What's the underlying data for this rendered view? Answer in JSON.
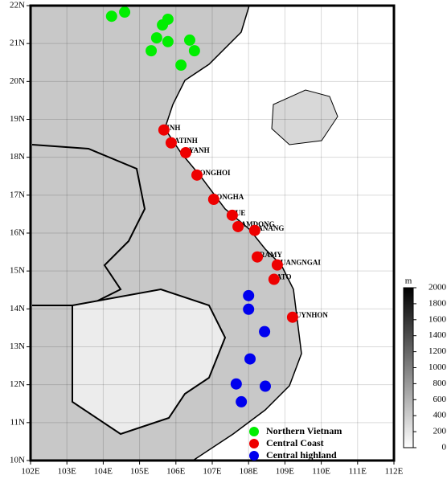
{
  "chart_data": {
    "type": "scatter",
    "xlim": [
      102,
      112
    ],
    "ylim": [
      10,
      22
    ],
    "xticks": [
      {
        "value": 102,
        "label": "102E"
      },
      {
        "value": 103,
        "label": "103E"
      },
      {
        "value": 104,
        "label": "104E"
      },
      {
        "value": 105,
        "label": "105E"
      },
      {
        "value": 106,
        "label": "106E"
      },
      {
        "value": 107,
        "label": "107E"
      },
      {
        "value": 108,
        "label": "108E"
      },
      {
        "value": 109,
        "label": "109E"
      },
      {
        "value": 110,
        "label": "110E"
      },
      {
        "value": 111,
        "label": "111E"
      },
      {
        "value": 112,
        "label": "112E"
      }
    ],
    "yticks": [
      {
        "value": 10,
        "label": "10N"
      },
      {
        "value": 11,
        "label": "11N"
      },
      {
        "value": 12,
        "label": "12N"
      },
      {
        "value": 13,
        "label": "13N"
      },
      {
        "value": 14,
        "label": "14N"
      },
      {
        "value": 15,
        "label": "15N"
      },
      {
        "value": 16,
        "label": "16N"
      },
      {
        "value": 17,
        "label": "17N"
      },
      {
        "value": 18,
        "label": "18N"
      },
      {
        "value": 19,
        "label": "19N"
      },
      {
        "value": 20,
        "label": "20N"
      },
      {
        "value": 21,
        "label": "21N"
      },
      {
        "value": 22,
        "label": "22N"
      }
    ],
    "grid": true,
    "legend": "lower right",
    "series": [
      {
        "name": "Northern Vietnam",
        "color": "#00ee00",
        "x": [
          104.23,
          104.59,
          105.63,
          105.78,
          105.47,
          105.78,
          106.38,
          106.51,
          105.32,
          106.14
        ],
        "y": [
          21.72,
          21.83,
          21.49,
          21.64,
          21.15,
          21.05,
          21.09,
          20.81,
          20.81,
          20.43
        ]
      },
      {
        "name": "Central Coast",
        "color": "#ee0000",
        "x": [
          105.67,
          105.87,
          106.27,
          106.58,
          107.04,
          107.55,
          107.71,
          108.17,
          108.24,
          108.79,
          108.7,
          109.21
        ],
        "y": [
          18.72,
          18.38,
          18.12,
          17.53,
          16.89,
          16.47,
          16.17,
          16.07,
          15.37,
          15.16,
          14.78,
          13.78
        ],
        "labels": [
          "VINH",
          "HATINH",
          "KYANH",
          "DONGHOI",
          "DONGHA",
          "HUE",
          "NAMDONG",
          "DANANG",
          "TRAMY",
          "QUANGNGAI",
          "BATO",
          "QUYNHON"
        ]
      },
      {
        "name": "Central highland",
        "color": "#0000ee",
        "x": [
          108.0,
          108.0,
          108.44,
          108.04,
          107.66,
          108.46,
          107.8
        ],
        "y": [
          14.35,
          13.99,
          13.4,
          12.68,
          12.02,
          11.96,
          11.55
        ]
      }
    ],
    "colorbar": {
      "label": "m",
      "lim": [
        0,
        2000
      ],
      "ticks": [
        0,
        200,
        400,
        600,
        800,
        1000,
        1200,
        1400,
        1600,
        1800,
        2000
      ]
    }
  }
}
